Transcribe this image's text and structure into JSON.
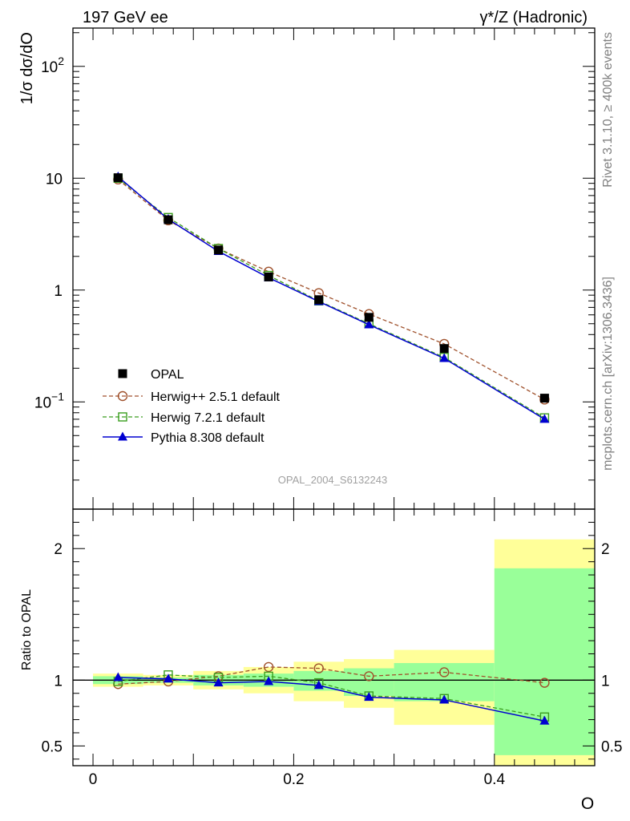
{
  "header": {
    "left": "197 GeV ee",
    "right": "γ*/Z (Hadronic)"
  },
  "side_labels": {
    "rivet": "Rivet 3.1.10, ≥ 400k events",
    "mcplots": "mcplots.cern.ch [arXiv:1306.3436]"
  },
  "watermark": "OPAL_2004_S6132243",
  "chart_data": [
    {
      "type": "line",
      "panel": "main",
      "ylabel": "1/σ dσ/dO",
      "yscale": "log",
      "ylim": [
        0.011,
        220
      ],
      "xlim": [
        -0.02,
        0.5
      ],
      "ytick_labels": [
        {
          "value": 100,
          "label": "10",
          "sup": "2"
        },
        {
          "value": 10,
          "label": "10",
          "sup": ""
        },
        {
          "value": 1,
          "label": "1",
          "sup": ""
        },
        {
          "value": 0.1,
          "label": "10",
          "sup": "−1"
        }
      ],
      "x": [
        0.025,
        0.075,
        0.125,
        0.175,
        0.225,
        0.275,
        0.35,
        0.45
      ],
      "series": [
        {
          "name": "OPAL",
          "style": "data",
          "color": "#000000",
          "values": [
            10.1,
            4.25,
            2.28,
            1.31,
            0.82,
            0.57,
            0.3,
            0.108
          ]
        },
        {
          "name": "Herwig++ 2.5.1 default",
          "style": "circle-dashed",
          "color": "#a0522d",
          "values": [
            9.75,
            4.2,
            2.35,
            1.46,
            0.94,
            0.61,
            0.33,
            0.105
          ]
        },
        {
          "name": "Herwig 7.2.1 default",
          "style": "square-dashed",
          "color": "#3a9e1e",
          "values": [
            10.0,
            4.45,
            2.35,
            1.35,
            0.8,
            0.5,
            0.25,
            0.072
          ]
        },
        {
          "name": "Pythia 8.308 default",
          "style": "triangle-solid",
          "color": "#0000d0",
          "values": [
            10.3,
            4.3,
            2.22,
            1.29,
            0.79,
            0.49,
            0.245,
            0.07
          ]
        }
      ]
    },
    {
      "type": "line",
      "panel": "ratio",
      "ylabel": "Ratio to OPAL",
      "xlabel": "O",
      "ylim": [
        0.35,
        2.3
      ],
      "xlim": [
        -0.02,
        0.5
      ],
      "ytick_labels": [
        {
          "value": 2,
          "label": "2"
        },
        {
          "value": 1,
          "label": "1"
        },
        {
          "value": 0.5,
          "label": "0.5"
        }
      ],
      "xtick_labels": [
        {
          "value": 0,
          "label": "0"
        },
        {
          "value": 0.2,
          "label": "0.2"
        },
        {
          "value": 0.4,
          "label": "0.4"
        }
      ],
      "bands": [
        {
          "x0": 0.0,
          "x1": 0.05,
          "yellow": [
            0.95,
            1.05
          ],
          "green": [
            0.97,
            1.03
          ]
        },
        {
          "x0": 0.05,
          "x1": 0.1,
          "yellow": [
            0.96,
            1.04
          ],
          "green": [
            0.98,
            1.02
          ]
        },
        {
          "x0": 0.1,
          "x1": 0.15,
          "yellow": [
            0.93,
            1.07
          ],
          "green": [
            0.96,
            1.04
          ]
        },
        {
          "x0": 0.15,
          "x1": 0.2,
          "yellow": [
            0.9,
            1.1
          ],
          "green": [
            0.95,
            1.05
          ]
        },
        {
          "x0": 0.2,
          "x1": 0.25,
          "yellow": [
            0.84,
            1.14
          ],
          "green": [
            0.92,
            1.07
          ]
        },
        {
          "x0": 0.25,
          "x1": 0.3,
          "yellow": [
            0.79,
            1.16
          ],
          "green": [
            0.88,
            1.09
          ]
        },
        {
          "x0": 0.3,
          "x1": 0.4,
          "yellow": [
            0.66,
            1.23
          ],
          "green": [
            0.84,
            1.13
          ]
        },
        {
          "x0": 0.4,
          "x1": 0.5,
          "yellow": [
            0.35,
            2.07
          ],
          "green": [
            0.43,
            1.85
          ]
        }
      ],
      "x": [
        0.025,
        0.075,
        0.125,
        0.175,
        0.225,
        0.275,
        0.35,
        0.45
      ],
      "series": [
        {
          "name": "Herwig++ 2.5.1 default",
          "style": "circle-dashed",
          "color": "#a0522d",
          "values": [
            0.97,
            0.99,
            1.03,
            1.1,
            1.09,
            1.03,
            1.06,
            0.98
          ]
        },
        {
          "name": "Herwig 7.2.1 default",
          "style": "square-dashed",
          "color": "#3a9e1e",
          "values": [
            0.99,
            1.04,
            1.02,
            1.03,
            0.98,
            0.88,
            0.86,
            0.72
          ]
        },
        {
          "name": "Pythia 8.308 default",
          "style": "triangle-solid",
          "color": "#0000d0",
          "values": [
            1.02,
            1.01,
            0.98,
            0.99,
            0.96,
            0.87,
            0.85,
            0.69
          ]
        }
      ]
    }
  ]
}
